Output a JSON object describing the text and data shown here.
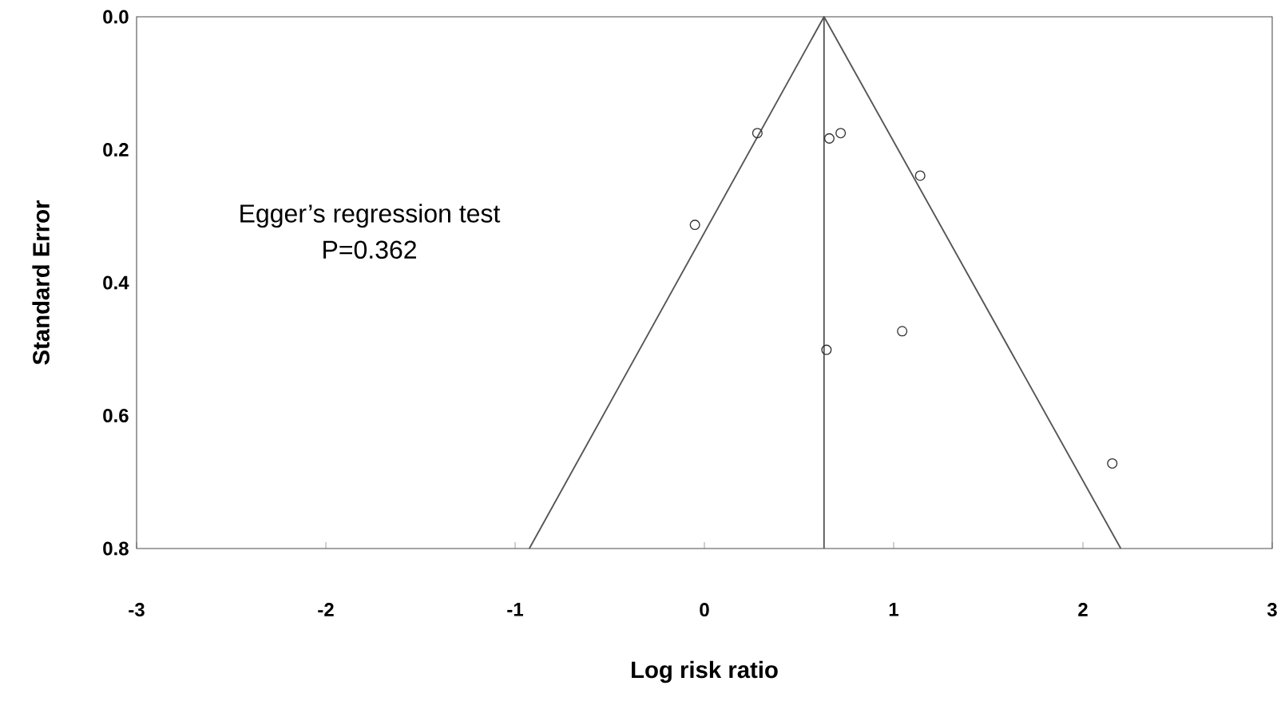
{
  "chart_data": {
    "type": "scatter",
    "xlabel": "Log risk ratio",
    "ylabel": "Standard Error",
    "annotations": [
      "Egger’s regression test",
      "P=0.362"
    ],
    "series": [
      {
        "color": "#333333",
        "marker": "circle",
        "x": [
          0.28,
          0.66,
          0.72,
          1.14,
          -0.05,
          0.645,
          1.045,
          2.155
        ],
        "values": [
          0.175,
          0.183,
          0.175,
          0.239,
          0.313,
          0.501,
          0.473,
          0.672
        ]
      },
      {
        "type": "line",
        "color": "#555555",
        "marker": "none",
        "x": [
          -0.925,
          0.632,
          2.2
        ],
        "values": [
          0.8,
          0,
          0.8
        ]
      }
    ],
    "ref_lines": [
      {
        "axis": "x",
        "value": 0.632,
        "color": "#555555"
      }
    ],
    "xlim": [
      -3,
      3
    ],
    "ylim": [
      0.8,
      0
    ],
    "xticks": [
      -3,
      -2,
      -1,
      0,
      1,
      2,
      3
    ],
    "yticks": [
      {
        "value": 0,
        "label": "0.0"
      },
      {
        "value": 0.2,
        "label": "0.2"
      },
      {
        "value": 0.4,
        "label": "0.4"
      },
      {
        "value": 0.6,
        "label": "0.6"
      },
      {
        "value": 0.8,
        "label": "0.8"
      }
    ],
    "grid": false
  }
}
